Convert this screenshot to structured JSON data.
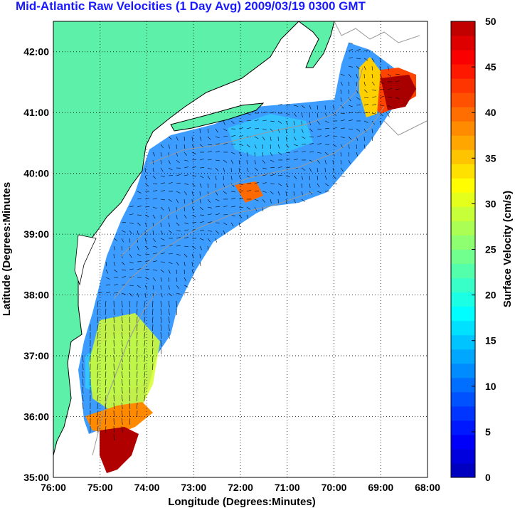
{
  "title": "Mid-Atlantic Raw Velocities (1 Day Avg) 2009/03/19 0300 GMT",
  "map": {
    "xlabel": "Longitude (Degrees:Minutes)",
    "ylabel": "Latitude (Degrees:Minutes",
    "lon_ticks": [
      "76:00",
      "75:00",
      "74:00",
      "73:00",
      "72:00",
      "71:00",
      "70:00",
      "69:00",
      "68:00"
    ],
    "lat_ticks": [
      "42:00",
      "41:00",
      "40:00",
      "39:00",
      "38:00",
      "37:00",
      "36:00",
      "35:00"
    ],
    "lon_range": [
      -76,
      -68
    ],
    "lat_range": [
      35,
      42.5
    ],
    "grid": "dotted",
    "colors": {
      "land": "#5cf0a8",
      "water_background": "#ffffff",
      "coastline": "#000000",
      "bathymetry": "#9a9a9a",
      "title": "#1a1aff"
    }
  },
  "colorbar": {
    "label": "Surface Velocity (cm/s)",
    "ticks": [
      "50",
      "45",
      "40",
      "35",
      "30",
      "25",
      "20",
      "15",
      "10",
      "5",
      "0"
    ],
    "range": [
      0,
      50
    ],
    "colormap": "jet",
    "steps": 32
  }
}
